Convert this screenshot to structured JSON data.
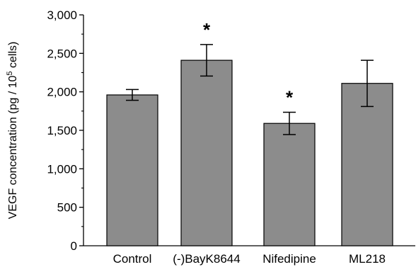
{
  "chart_data": {
    "type": "bar",
    "categories": [
      "Control",
      "(-)BayK8644",
      "Nifedipine",
      "ML218"
    ],
    "values": [
      1960,
      2410,
      1590,
      2110
    ],
    "error": [
      70,
      205,
      145,
      300
    ],
    "significance": [
      "",
      "*",
      "*",
      ""
    ],
    "ylabel_main": "VEGF concentration (pg / 10",
    "ylabel_sup": "5",
    "ylabel_end": " cells)",
    "ylim": [
      0,
      3000
    ],
    "yticks": [
      "0",
      "500",
      "1,000",
      "1,500",
      "2,000",
      "2,500",
      "3,000"
    ],
    "ytick_values": [
      0,
      500,
      1000,
      1500,
      2000,
      2500,
      3000
    ],
    "grid": false,
    "bar_color": "#8c8c8c",
    "edge_color": "#000000"
  }
}
